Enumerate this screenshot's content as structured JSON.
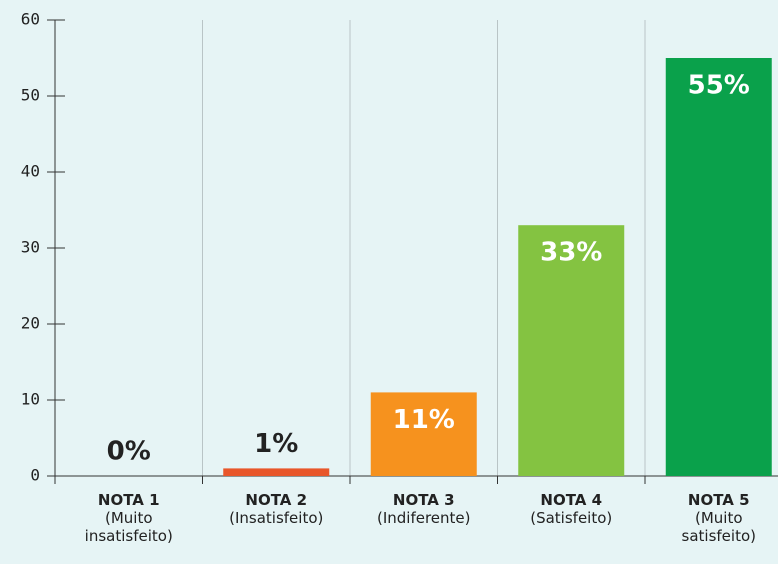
{
  "chart_data": {
    "type": "bar",
    "categories": [
      "NOTA 1",
      "NOTA 2",
      "NOTA 3",
      "NOTA 4",
      "NOTA 5"
    ],
    "category_descriptions": [
      "(Muito insatisfeito)",
      "(Insatisfeito)",
      "(Indiferente)",
      "(Satisfeito)",
      "(Muito satisfeito)"
    ],
    "values": [
      0,
      1,
      11,
      33,
      55
    ],
    "value_labels": [
      "0%",
      "1%",
      "11%",
      "33%",
      "55%"
    ],
    "colors": [
      "#e8562a",
      "#e8562a",
      "#f6921e",
      "#84c341",
      "#0aa14b"
    ],
    "ylim": [
      0,
      60
    ],
    "yticks": [
      0,
      10,
      20,
      30,
      40,
      50,
      60
    ],
    "grid": true
  }
}
